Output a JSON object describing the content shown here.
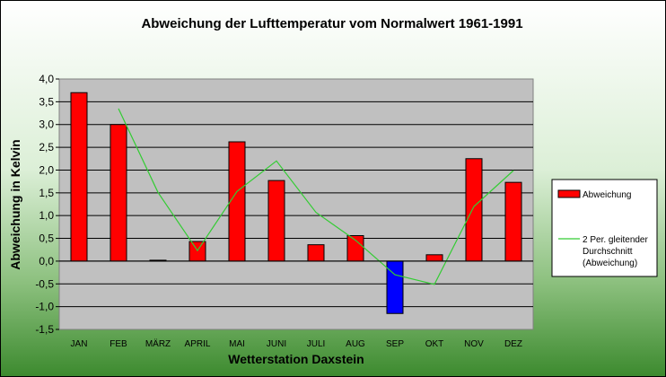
{
  "chart_data": {
    "type": "bar",
    "title": "Abweichung der Lufttemperatur vom Normalwert 1961-1991",
    "xlabel": "Wetterstation Daxstein",
    "ylabel": "Abweichung in Kelvin",
    "ylim": [
      -1.5,
      4.0
    ],
    "y_ticks": [
      "4,0",
      "3,5",
      "3,0",
      "2,5",
      "2,0",
      "1,5",
      "1,0",
      "0,5",
      "0,0",
      "-0,5",
      "-1,0",
      "-1,5"
    ],
    "y_tick_values": [
      4.0,
      3.5,
      3.0,
      2.5,
      2.0,
      1.5,
      1.0,
      0.5,
      0.0,
      -0.5,
      -1.0,
      -1.5
    ],
    "categories": [
      "JAN",
      "FEB",
      "MÄRZ",
      "APRIL",
      "MAI",
      "JUNI",
      "JULI",
      "AUG",
      "SEP",
      "OKT",
      "NOV",
      "DEZ"
    ],
    "grid": true,
    "legend_position": "right",
    "series": [
      {
        "name": "Abweichung",
        "kind": "bar",
        "color": "#ff0000",
        "negative_color": "#0000ff",
        "values": [
          3.7,
          3.0,
          0.02,
          0.43,
          2.62,
          1.77,
          0.36,
          0.56,
          -1.15,
          0.14,
          2.25,
          1.73
        ]
      },
      {
        "name_lines": [
          "2 Per. gleitender",
          "Durchschnitt",
          "(Abweichung)"
        ],
        "kind": "line",
        "color": "#33cc33",
        "values": [
          null,
          3.35,
          1.51,
          0.23,
          1.53,
          2.2,
          1.07,
          0.46,
          -0.3,
          -0.51,
          1.2,
          1.99
        ]
      }
    ]
  }
}
